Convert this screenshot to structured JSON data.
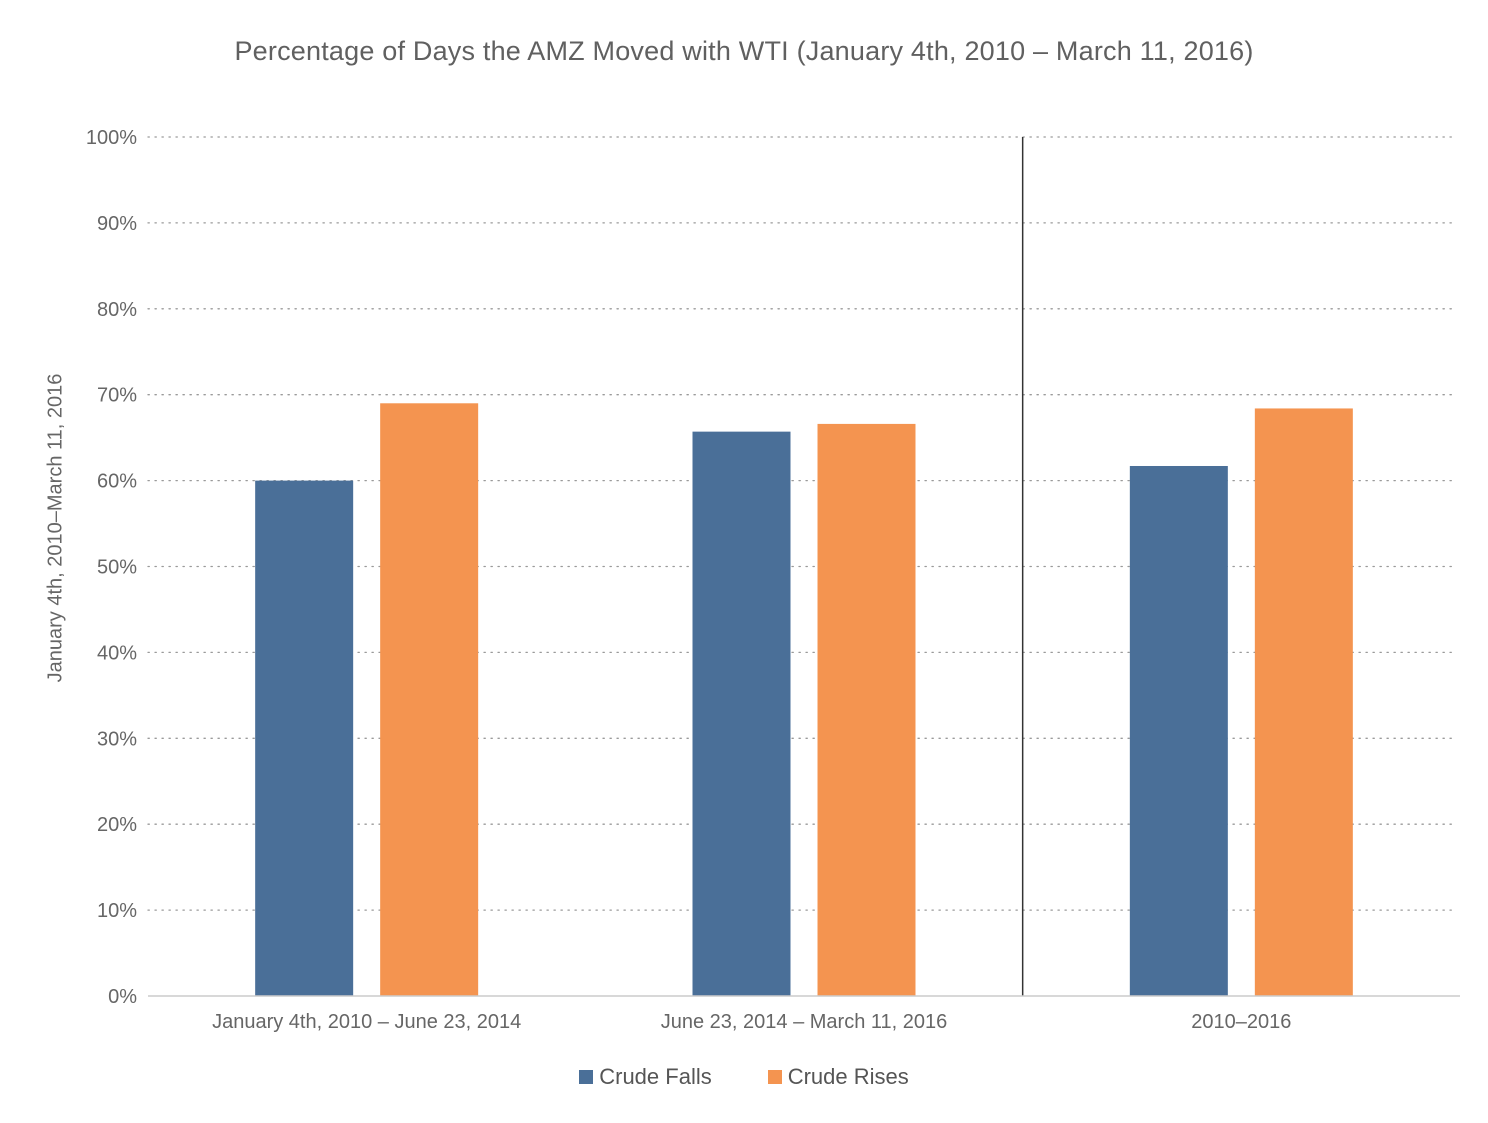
{
  "colors": {
    "crude_falls": "#4a6f98",
    "crude_rises": "#f49450",
    "grid": "#9a9a9a",
    "axis": "#cccccc",
    "divider": "#333333",
    "text": "#606060"
  },
  "chart_data": {
    "type": "bar",
    "title": "Percentage of Days the AMZ Moved with WTI (January 4th, 2010 – March 11, 2016)",
    "xlabel": "",
    "ylabel": "January 4th, 2010–March 11, 2016",
    "categories": [
      "January 4th, 2010 – June 23, 2014",
      "June 23, 2014 – March 11, 2016",
      "2010–2016"
    ],
    "series": [
      {
        "name": "Crude Falls",
        "values": [
          60,
          65.7,
          61.7
        ]
      },
      {
        "name": "Crude Rises",
        "values": [
          69,
          66.6,
          68.4
        ]
      }
    ],
    "ylim": [
      0,
      100
    ],
    "y_ticks": [
      {
        "value": 0,
        "label": "0%"
      },
      {
        "value": 10,
        "label": "10%"
      },
      {
        "value": 20,
        "label": "20%"
      },
      {
        "value": 30,
        "label": "30%"
      },
      {
        "value": 40,
        "label": "40%"
      },
      {
        "value": 50,
        "label": "50%"
      },
      {
        "value": 60,
        "label": "60%"
      },
      {
        "value": 70,
        "label": "70%"
      },
      {
        "value": 80,
        "label": "80%"
      },
      {
        "value": 90,
        "label": "90%"
      },
      {
        "value": 100,
        "label": "100%"
      }
    ],
    "grid": true,
    "grid_style": "dotted",
    "divider_between_categories": [
      1,
      2
    ],
    "legend_position": "bottom"
  }
}
